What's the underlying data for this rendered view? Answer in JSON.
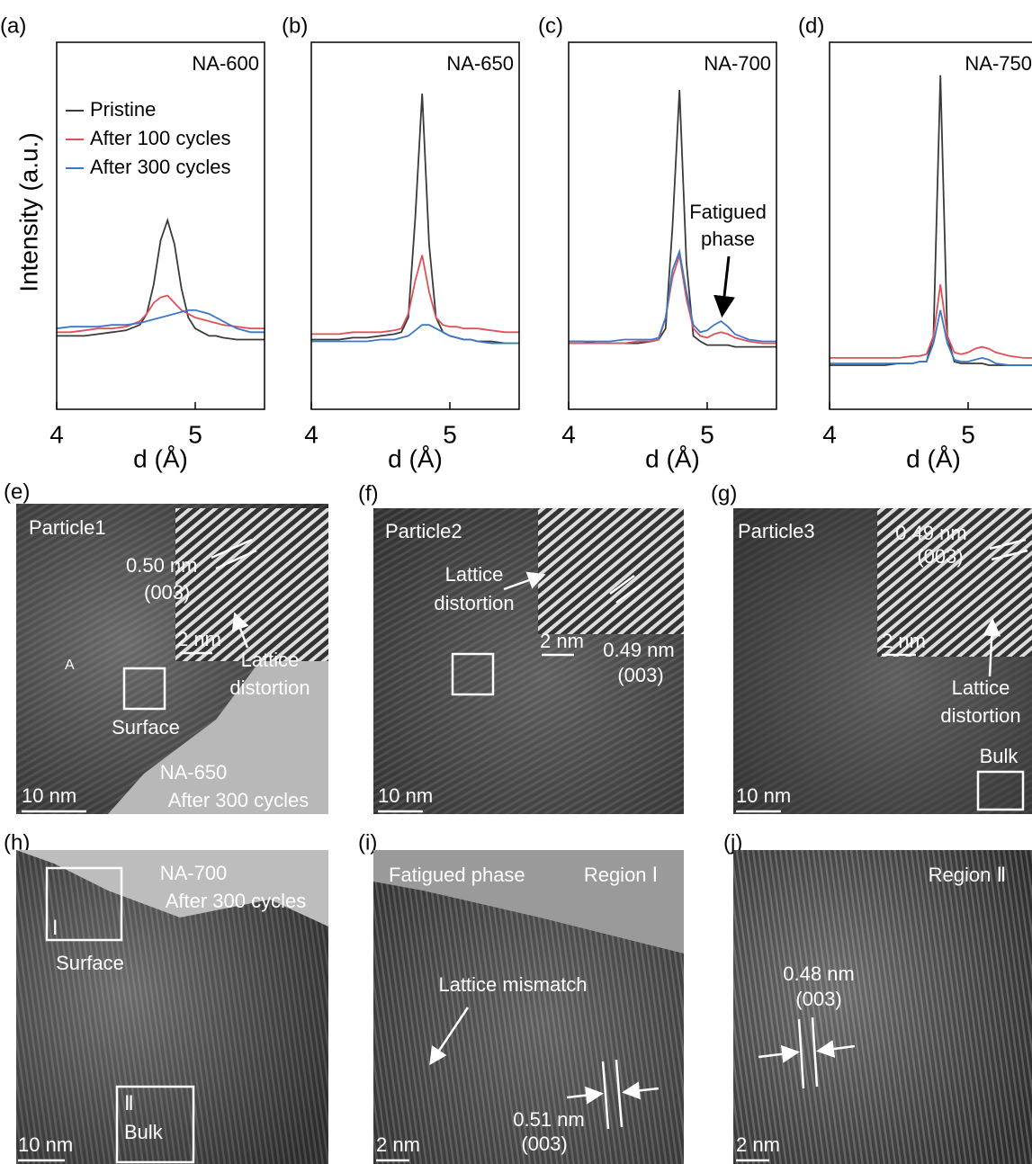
{
  "chart_data": [
    {
      "type": "line",
      "panel_label": "(a)",
      "annotation": "NA-600",
      "y_label": "Intensity (a.u.)",
      "x_label": "d (Å)",
      "xlim": [
        4,
        5.5
      ],
      "xticks": [
        4,
        5
      ],
      "ylim": [
        0,
        100
      ],
      "legend": "upper left",
      "x": [
        4.0,
        4.1,
        4.2,
        4.3,
        4.4,
        4.5,
        4.6,
        4.65,
        4.7,
        4.75,
        4.8,
        4.85,
        4.9,
        4.95,
        5.0,
        5.05,
        5.1,
        5.15,
        5.2,
        5.3,
        5.4,
        5.5
      ],
      "series": [
        {
          "name": "Pristine",
          "color": "#3a3a3a",
          "values": [
            20,
            20,
            20,
            20.5,
            21,
            21.5,
            23,
            26,
            34,
            46,
            51.5,
            45,
            33,
            25,
            22,
            21,
            20,
            20,
            19.5,
            19,
            19,
            19
          ]
        },
        {
          "name": "After 100 cycles",
          "color": "#e0505a",
          "values": [
            21,
            21,
            21.5,
            22,
            22,
            22.5,
            24,
            26,
            29,
            30.5,
            31,
            29,
            27,
            26,
            25,
            24.5,
            24,
            23.5,
            23,
            22.5,
            22,
            22
          ]
        },
        {
          "name": "After 300 cycles",
          "color": "#3a78c8",
          "values": [
            22,
            22.5,
            22.5,
            22.5,
            23,
            23,
            23.5,
            24,
            24.5,
            25,
            25.5,
            26,
            26.5,
            27,
            27,
            26.5,
            26,
            25,
            24,
            22,
            21,
            21
          ]
        }
      ]
    },
    {
      "type": "line",
      "panel_label": "(b)",
      "annotation": "NA-650",
      "x_label": "d (Å)",
      "xlim": [
        4,
        5.5
      ],
      "xticks": [
        4,
        5
      ],
      "ylim": [
        0,
        100
      ],
      "x": [
        4.0,
        4.1,
        4.2,
        4.3,
        4.4,
        4.5,
        4.6,
        4.65,
        4.7,
        4.75,
        4.8,
        4.85,
        4.9,
        4.95,
        5.0,
        5.05,
        5.1,
        5.15,
        5.2,
        5.3,
        5.4,
        5.5
      ],
      "series": [
        {
          "color": "#3a3a3a",
          "values": [
            19,
            19,
            19,
            19.5,
            19.5,
            20,
            20.5,
            21,
            25,
            52,
            86,
            45,
            25,
            21,
            20,
            19.5,
            19,
            19,
            18.5,
            18.5,
            18,
            18
          ]
        },
        {
          "color": "#e0505a",
          "values": [
            20.5,
            20.5,
            20.5,
            21,
            21,
            21,
            21.5,
            22,
            26,
            35,
            42,
            32,
            25,
            23,
            22.5,
            22.5,
            22,
            22,
            22,
            21.5,
            21,
            21
          ]
        },
        {
          "color": "#3a78c8",
          "values": [
            18.5,
            18.5,
            18.5,
            18.5,
            18.5,
            19,
            19,
            19.5,
            20,
            21.5,
            23,
            23,
            22,
            21,
            20,
            19.5,
            19,
            19,
            18.5,
            18,
            18,
            18
          ]
        }
      ]
    },
    {
      "type": "line",
      "panel_label": "(c)",
      "annotation": "NA-700",
      "x_label": "d (Å)",
      "callout": [
        "Fatigued",
        "phase"
      ],
      "xlim": [
        4,
        5.5
      ],
      "xticks": [
        4,
        5
      ],
      "ylim": [
        0,
        100
      ],
      "x": [
        4.0,
        4.1,
        4.2,
        4.3,
        4.4,
        4.5,
        4.6,
        4.65,
        4.7,
        4.75,
        4.8,
        4.85,
        4.9,
        4.95,
        5.0,
        5.05,
        5.1,
        5.15,
        5.2,
        5.3,
        5.4,
        5.5
      ],
      "series": [
        {
          "color": "#3a3a3a",
          "values": [
            18.5,
            18.5,
            18,
            18,
            18,
            18,
            18.5,
            19,
            22,
            50,
            87,
            40,
            20,
            18.5,
            17.5,
            17.5,
            17.5,
            17.5,
            17,
            17,
            17,
            17
          ]
        },
        {
          "color": "#e0505a",
          "values": [
            18,
            18,
            18,
            18,
            18,
            18.5,
            18.5,
            19,
            25,
            36,
            42,
            30,
            22,
            20,
            19.5,
            20.5,
            21,
            20.5,
            19.5,
            18.5,
            18,
            18
          ]
        },
        {
          "color": "#3a78c8",
          "values": [
            18.5,
            18.5,
            18.5,
            18.5,
            19,
            19,
            19,
            19.5,
            25,
            38,
            43,
            32,
            23,
            21,
            21.5,
            23,
            24,
            22.5,
            20.5,
            19,
            18.5,
            18.5
          ]
        }
      ]
    },
    {
      "type": "line",
      "panel_label": "(d)",
      "annotation": "NA-750",
      "x_label": "d (Å)",
      "xlim": [
        4,
        5.5
      ],
      "xticks": [
        4,
        5
      ],
      "ylim": [
        0,
        100
      ],
      "x": [
        4.0,
        4.1,
        4.2,
        4.3,
        4.4,
        4.5,
        4.6,
        4.65,
        4.7,
        4.75,
        4.8,
        4.85,
        4.9,
        4.95,
        5.0,
        5.05,
        5.1,
        5.15,
        5.2,
        5.3,
        5.4,
        5.5
      ],
      "series": [
        {
          "color": "#3a3a3a",
          "values": [
            12,
            12,
            12,
            12,
            12,
            12.5,
            12.5,
            13,
            13,
            20,
            91,
            20,
            13,
            12.5,
            12.5,
            12.5,
            12.5,
            12,
            12,
            12,
            12,
            12
          ]
        },
        {
          "color": "#e0505a",
          "values": [
            14,
            14,
            14,
            14,
            14,
            14,
            14.5,
            14.5,
            15,
            20,
            34,
            20,
            15.5,
            15,
            15.5,
            16.5,
            17,
            16.5,
            15.5,
            14.5,
            14,
            14
          ]
        },
        {
          "color": "#3a78c8",
          "values": [
            12.5,
            12.5,
            12.5,
            12.5,
            12.5,
            12.5,
            12.5,
            13,
            13,
            18,
            27,
            18,
            13.5,
            13,
            13,
            13.5,
            14,
            13.5,
            12.5,
            12,
            12,
            12
          ]
        }
      ]
    }
  ],
  "images": [
    {
      "panel_label": "(e)",
      "labels": [
        "Particle1",
        "0.50 nm",
        "(003)",
        "2 nm",
        "Lattice",
        "distortion",
        "A",
        "Surface",
        "NA-650",
        "After 300 cycles",
        "10 nm"
      ]
    },
    {
      "panel_label": "(f)",
      "labels": [
        "Particle2",
        "Lattice",
        "distortion",
        "2 nm",
        "0.49 nm",
        "(003)",
        "10 nm"
      ]
    },
    {
      "panel_label": "(g)",
      "labels": [
        "Particle3",
        "0.49 nm",
        "(003)",
        "2 nm",
        "Lattice",
        "distortion",
        "Bulk",
        "10 nm"
      ]
    },
    {
      "panel_label": "(h)",
      "labels": [
        "NA-700",
        "After 300 cycles",
        "Ⅰ",
        "Surface",
        "Ⅱ",
        "Bulk",
        "10 nm"
      ]
    },
    {
      "panel_label": "(i)",
      "labels": [
        "Fatigued phase",
        "Region Ⅰ",
        "Lattice mismatch",
        "0.51 nm",
        "(003)",
        "2 nm"
      ]
    },
    {
      "panel_label": "(j)",
      "labels": [
        "Region Ⅱ",
        "0.48 nm",
        "(003)",
        "2 nm"
      ]
    }
  ]
}
